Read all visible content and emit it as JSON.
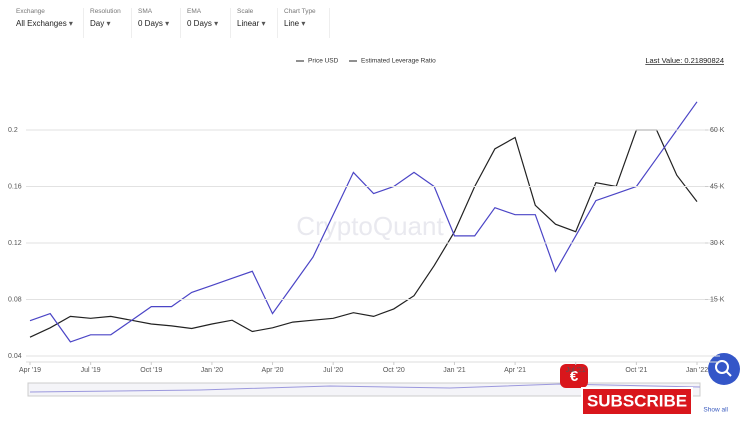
{
  "toolbar": [
    {
      "label": "Exchange",
      "value": "All Exchanges"
    },
    {
      "label": "Resolution",
      "value": "Day"
    },
    {
      "label": "SMA",
      "value": "0 Days"
    },
    {
      "label": "EMA",
      "value": "0 Days"
    },
    {
      "label": "Scale",
      "value": "Linear"
    },
    {
      "label": "Chart Type",
      "value": "Line"
    }
  ],
  "last_value": "Last Value: 0.21890824",
  "watermark": "CryptoQuant",
  "show_all": "Show all",
  "subscribe": "SUBSCRIBE",
  "chart_data": {
    "type": "line",
    "x": [
      "2019-04",
      "2019-05",
      "2019-06",
      "2019-07",
      "2019-08",
      "2019-09",
      "2019-10",
      "2019-11",
      "2019-12",
      "2020-01",
      "2020-02",
      "2020-03",
      "2020-04",
      "2020-05",
      "2020-06",
      "2020-07",
      "2020-08",
      "2020-09",
      "2020-10",
      "2020-11",
      "2020-12",
      "2021-01",
      "2021-02",
      "2021-03",
      "2021-04",
      "2021-05",
      "2021-06",
      "2021-07",
      "2021-08",
      "2021-09",
      "2021-10",
      "2021-11",
      "2021-12",
      "2022-01"
    ],
    "series": [
      {
        "name": "Price USD",
        "color": "#222222",
        "axis": "y2",
        "values": [
          5000,
          7500,
          10500,
          10000,
          10500,
          9500,
          8500,
          8000,
          7300,
          8500,
          9500,
          6500,
          7500,
          9000,
          9500,
          10000,
          11500,
          10500,
          12500,
          16000,
          24000,
          33000,
          45000,
          55000,
          58000,
          40000,
          35000,
          33000,
          46000,
          45000,
          60000,
          60000,
          48000,
          41000
        ]
      },
      {
        "name": "Estimated Leverage Ratio",
        "color": "#4b45c6",
        "values": [
          0.065,
          0.07,
          0.05,
          0.055,
          0.055,
          0.065,
          0.075,
          0.075,
          0.085,
          0.09,
          0.095,
          0.1,
          0.07,
          0.09,
          0.11,
          0.14,
          0.17,
          0.155,
          0.16,
          0.17,
          0.16,
          0.125,
          0.125,
          0.145,
          0.14,
          0.14,
          0.1,
          0.125,
          0.15,
          0.155,
          0.16,
          0.18,
          0.2,
          0.22
        ]
      }
    ],
    "ylim": [
      0.04,
      0.24
    ],
    "yticks": [
      0.04,
      0.08,
      0.12,
      0.16,
      0.2
    ],
    "y2lim": [
      0,
      75000
    ],
    "y2ticks": [
      {
        "value": 15000,
        "label": "15 K"
      },
      {
        "value": 30000,
        "label": "30 K"
      },
      {
        "value": 45000,
        "label": "45 K"
      },
      {
        "value": 60000,
        "label": "60 K"
      }
    ],
    "xticks": [
      {
        "value": "2019-04",
        "label": "Apr '19"
      },
      {
        "value": "2019-07",
        "label": "Jul '19"
      },
      {
        "value": "2019-10",
        "label": "Oct '19"
      },
      {
        "value": "2020-01",
        "label": "Jan '20"
      },
      {
        "value": "2020-04",
        "label": "Apr '20"
      },
      {
        "value": "2020-07",
        "label": "Jul '20"
      },
      {
        "value": "2020-10",
        "label": "Oct '20"
      },
      {
        "value": "2021-01",
        "label": "Jan '21"
      },
      {
        "value": "2021-04",
        "label": "Apr '21"
      },
      {
        "value": "2021-07",
        "label": "Jul '21"
      },
      {
        "value": "2021-10",
        "label": "Oct '21"
      },
      {
        "value": "2022-01",
        "label": "Jan '22"
      }
    ],
    "grid": true
  }
}
